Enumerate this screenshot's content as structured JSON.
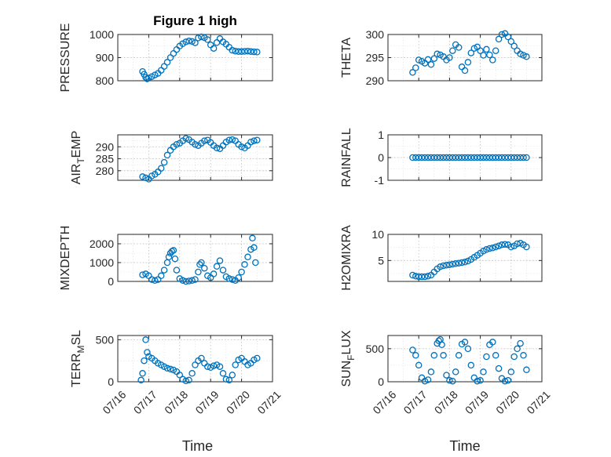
{
  "colors": {
    "marker": "#0072BD",
    "axis": "#262626",
    "background": "#ffffff"
  },
  "chart_data": [
    {
      "type": "scatter",
      "id": "pressure",
      "title": "Figure 1 high",
      "ylabel": "PRESSURE",
      "ylim": [
        800,
        1000
      ],
      "yticks": [
        800,
        900,
        1000
      ],
      "grid": true,
      "minor_grid": true,
      "x": [
        0.8,
        0.85,
        0.9,
        0.95,
        1.0,
        1.1,
        1.2,
        1.3,
        1.4,
        1.5,
        1.6,
        1.7,
        1.8,
        1.9,
        2.0,
        2.1,
        2.2,
        2.3,
        2.4,
        2.5,
        2.6,
        2.7,
        2.8,
        2.9,
        3.0,
        3.1,
        3.2,
        3.3,
        3.4,
        3.5,
        3.6,
        3.7,
        3.8,
        3.9,
        4.0,
        4.1,
        4.2,
        4.3,
        4.4,
        4.5
      ],
      "y": [
        840,
        828,
        815,
        808,
        812,
        818,
        825,
        832,
        845,
        862,
        880,
        900,
        918,
        935,
        950,
        960,
        968,
        972,
        970,
        964,
        985,
        990,
        986,
        978,
        955,
        940,
        965,
        982,
        968,
        958,
        945,
        932,
        928,
        926,
        926,
        927,
        928,
        926,
        925,
        924
      ]
    },
    {
      "type": "scatter",
      "id": "theta",
      "title": "",
      "ylabel": "THETA",
      "ylim": [
        290,
        300
      ],
      "yticks": [
        290,
        295,
        300
      ],
      "grid": true,
      "minor_grid": true,
      "x": [
        0.8,
        0.9,
        1.0,
        1.1,
        1.2,
        1.3,
        1.4,
        1.5,
        1.6,
        1.7,
        1.8,
        1.9,
        2.0,
        2.1,
        2.2,
        2.3,
        2.4,
        2.5,
        2.6,
        2.7,
        2.8,
        2.9,
        3.0,
        3.1,
        3.2,
        3.3,
        3.4,
        3.5,
        3.6,
        3.7,
        3.8,
        3.9,
        4.0,
        4.1,
        4.2,
        4.3,
        4.4,
        4.5
      ],
      "y": [
        291.8,
        292.8,
        294.5,
        294.2,
        293.8,
        294.6,
        293.5,
        294.8,
        295.8,
        295.6,
        295.2,
        294.5,
        295.0,
        296.5,
        297.8,
        297.2,
        293.0,
        292.2,
        294.0,
        296.0,
        297.0,
        297.3,
        296.5,
        295.5,
        296.8,
        295.6,
        294.5,
        296.5,
        299.0,
        300.0,
        300.2,
        299.5,
        298.5,
        297.5,
        296.5,
        295.8,
        295.5,
        295.2
      ]
    },
    {
      "type": "scatter",
      "id": "air_temp",
      "title": "",
      "ylabel": "AIR_TEMP",
      "ylim": [
        276,
        295
      ],
      "yticks": [
        280,
        285,
        290
      ],
      "grid": true,
      "minor_grid": true,
      "x": [
        0.8,
        0.9,
        1.0,
        1.1,
        1.2,
        1.3,
        1.4,
        1.5,
        1.6,
        1.7,
        1.8,
        1.9,
        2.0,
        2.1,
        2.2,
        2.3,
        2.4,
        2.5,
        2.6,
        2.7,
        2.8,
        2.9,
        3.0,
        3.1,
        3.2,
        3.3,
        3.4,
        3.5,
        3.6,
        3.7,
        3.8,
        3.9,
        4.0,
        4.1,
        4.2,
        4.3,
        4.4,
        4.5
      ],
      "y": [
        277.5,
        277.0,
        276.5,
        277.8,
        278.5,
        279.5,
        281.0,
        283.5,
        286.5,
        288.5,
        290.0,
        291.0,
        291.5,
        292.5,
        293.5,
        293.0,
        292.0,
        291.0,
        290.5,
        291.5,
        292.5,
        292.8,
        291.8,
        290.5,
        289.5,
        289.2,
        290.5,
        292.0,
        292.8,
        293.0,
        292.5,
        291.0,
        290.0,
        289.5,
        290.5,
        292.0,
        292.5,
        292.8
      ]
    },
    {
      "type": "scatter",
      "id": "rainfall",
      "title": "",
      "ylabel": "RAINFALL",
      "ylim": [
        -1,
        1
      ],
      "yticks": [
        -1,
        0,
        1
      ],
      "grid": true,
      "minor_grid": true,
      "x": [
        0.8,
        0.9,
        1.0,
        1.1,
        1.2,
        1.3,
        1.4,
        1.5,
        1.6,
        1.7,
        1.8,
        1.9,
        2.0,
        2.1,
        2.2,
        2.3,
        2.4,
        2.5,
        2.6,
        2.7,
        2.8,
        2.9,
        3.0,
        3.1,
        3.2,
        3.3,
        3.4,
        3.5,
        3.6,
        3.7,
        3.8,
        3.9,
        4.0,
        4.1,
        4.2,
        4.3,
        4.4,
        4.5
      ],
      "y": [
        0,
        0,
        0,
        0,
        0,
        0,
        0,
        0,
        0,
        0,
        0,
        0,
        0,
        0,
        0,
        0,
        0,
        0,
        0,
        0,
        0,
        0,
        0,
        0,
        0,
        0,
        0,
        0,
        0,
        0,
        0,
        0,
        0,
        0,
        0,
        0,
        0,
        0
      ]
    },
    {
      "type": "scatter",
      "id": "mixdepth",
      "title": "",
      "ylabel": "MIXDEPTH",
      "ylim": [
        0,
        2500
      ],
      "yticks": [
        0,
        1000,
        2000
      ],
      "grid": true,
      "minor_grid": true,
      "x": [
        0.8,
        0.9,
        1.0,
        1.1,
        1.2,
        1.3,
        1.4,
        1.5,
        1.6,
        1.65,
        1.7,
        1.75,
        1.8,
        1.85,
        1.9,
        2.0,
        2.1,
        2.2,
        2.3,
        2.4,
        2.5,
        2.6,
        2.65,
        2.7,
        2.8,
        2.9,
        3.0,
        3.1,
        3.2,
        3.3,
        3.4,
        3.5,
        3.6,
        3.7,
        3.8,
        3.9,
        4.0,
        4.1,
        4.2,
        4.3,
        4.35,
        4.4,
        4.45
      ],
      "y": [
        350,
        400,
        300,
        100,
        50,
        100,
        300,
        600,
        1000,
        1300,
        1500,
        1600,
        1650,
        1200,
        600,
        150,
        50,
        0,
        20,
        50,
        100,
        500,
        900,
        1000,
        700,
        300,
        200,
        400,
        800,
        1100,
        600,
        250,
        150,
        100,
        50,
        200,
        500,
        900,
        1300,
        1700,
        2300,
        1800,
        1000
      ]
    },
    {
      "type": "scatter",
      "id": "h2omixra",
      "title": "",
      "ylabel": "H2OMIXRA",
      "ylim": [
        1,
        10
      ],
      "yticks": [
        5,
        10
      ],
      "grid": true,
      "minor_grid": true,
      "x": [
        0.8,
        0.9,
        1.0,
        1.1,
        1.2,
        1.3,
        1.4,
        1.5,
        1.6,
        1.7,
        1.8,
        1.9,
        2.0,
        2.1,
        2.2,
        2.3,
        2.4,
        2.5,
        2.6,
        2.7,
        2.8,
        2.9,
        3.0,
        3.1,
        3.2,
        3.3,
        3.4,
        3.5,
        3.6,
        3.7,
        3.8,
        3.9,
        4.0,
        4.1,
        4.2,
        4.3,
        4.4,
        4.5
      ],
      "y": [
        2.2,
        2.0,
        1.9,
        1.9,
        1.9,
        2.0,
        2.2,
        2.8,
        3.4,
        3.8,
        4.0,
        4.1,
        4.2,
        4.3,
        4.4,
        4.5,
        4.6,
        4.7,
        4.9,
        5.2,
        5.6,
        6.0,
        6.4,
        6.8,
        7.1,
        7.3,
        7.4,
        7.6,
        7.8,
        8.0,
        8.1,
        8.0,
        7.6,
        7.8,
        8.2,
        8.3,
        8.0,
        7.6
      ]
    },
    {
      "type": "scatter",
      "id": "terr_msl",
      "title": "",
      "ylabel": "TERR_MSL",
      "ylim": [
        0,
        550
      ],
      "yticks": [
        0,
        500
      ],
      "grid": true,
      "minor_grid": true,
      "x": [
        0.75,
        0.8,
        0.85,
        0.9,
        0.95,
        1.0,
        1.1,
        1.2,
        1.3,
        1.4,
        1.5,
        1.6,
        1.7,
        1.8,
        1.9,
        2.0,
        2.1,
        2.2,
        2.3,
        2.4,
        2.5,
        2.6,
        2.7,
        2.8,
        2.9,
        3.0,
        3.1,
        3.2,
        3.3,
        3.4,
        3.5,
        3.6,
        3.7,
        3.8,
        3.9,
        4.0,
        4.1,
        4.2,
        4.3,
        4.4,
        4.5
      ],
      "y": [
        20,
        100,
        250,
        500,
        350,
        300,
        280,
        250,
        220,
        200,
        180,
        160,
        150,
        140,
        120,
        80,
        30,
        10,
        20,
        100,
        200,
        250,
        280,
        220,
        180,
        170,
        190,
        200,
        180,
        100,
        30,
        20,
        80,
        200,
        260,
        280,
        240,
        200,
        220,
        260,
        280
      ]
    },
    {
      "type": "scatter",
      "id": "sun_flux",
      "title": "",
      "ylabel": "SUN_FLUX",
      "ylim": [
        0,
        700
      ],
      "yticks": [
        0,
        500
      ],
      "grid": true,
      "minor_grid": true,
      "x": [
        0.8,
        0.9,
        1.0,
        1.1,
        1.2,
        1.3,
        1.4,
        1.5,
        1.6,
        1.65,
        1.7,
        1.75,
        1.8,
        1.9,
        2.0,
        2.1,
        2.2,
        2.3,
        2.4,
        2.5,
        2.6,
        2.7,
        2.8,
        2.9,
        3.0,
        3.1,
        3.2,
        3.3,
        3.4,
        3.5,
        3.6,
        3.7,
        3.8,
        3.9,
        4.0,
        4.1,
        4.2,
        4.3,
        4.4,
        4.5
      ],
      "y": [
        480,
        400,
        250,
        60,
        10,
        30,
        150,
        400,
        580,
        620,
        640,
        560,
        400,
        100,
        20,
        10,
        150,
        400,
        570,
        600,
        500,
        250,
        60,
        10,
        20,
        150,
        380,
        560,
        600,
        400,
        200,
        50,
        10,
        20,
        150,
        380,
        500,
        580,
        400,
        180
      ]
    }
  ],
  "x_axis": {
    "ticks": [
      "07/16",
      "07/17",
      "07/18",
      "07/19",
      "07/20",
      "07/21"
    ],
    "label": "Time"
  }
}
